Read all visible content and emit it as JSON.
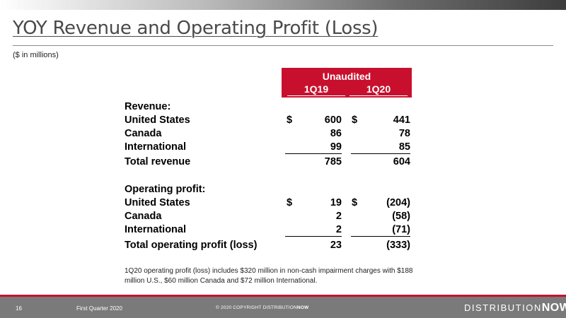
{
  "slide": {
    "title": "YOY Revenue and Operating Profit (Loss)",
    "subtitle": "($ in millions)"
  },
  "table": {
    "header": "Unaudited",
    "columns": [
      "1Q19",
      "1Q20"
    ],
    "revenue_heading": "Revenue:",
    "revenue_rows": [
      {
        "label": "United States",
        "c1": "600",
        "c2": "441",
        "currency": "$"
      },
      {
        "label": "Canada",
        "c1": "86",
        "c2": "78"
      },
      {
        "label": "International",
        "c1": "99",
        "c2": "85"
      }
    ],
    "revenue_total": {
      "label": "Total revenue",
      "c1": "785",
      "c2": "604"
    },
    "op_heading": "Operating profit:",
    "op_rows": [
      {
        "label": "United States",
        "c1": "19",
        "c2": "(204)",
        "currency": "$"
      },
      {
        "label": "Canada",
        "c1": "2",
        "c2": "(58)"
      },
      {
        "label": "International",
        "c1": "2",
        "c2": "(71)"
      }
    ],
    "op_total": {
      "label": "Total operating profit (loss)",
      "c1": "23",
      "c2": "(333)"
    }
  },
  "note": "1Q20 operating profit (loss) includes $320 million in non-cash impairment charges with $188 million U.S., $60 million Canada and $72 million International.",
  "footer": {
    "page_number": "16",
    "period": "First Quarter 2020",
    "copyright_prefix": "© 2020 COPYRIGHT DISTRIBUTION",
    "copyright_bold": "NOW",
    "logo_part1": "DISTRIBUTION",
    "logo_part2": "NOW"
  },
  "colors": {
    "accent": "#c8102e",
    "footer_bg": "#7a7a7a"
  }
}
